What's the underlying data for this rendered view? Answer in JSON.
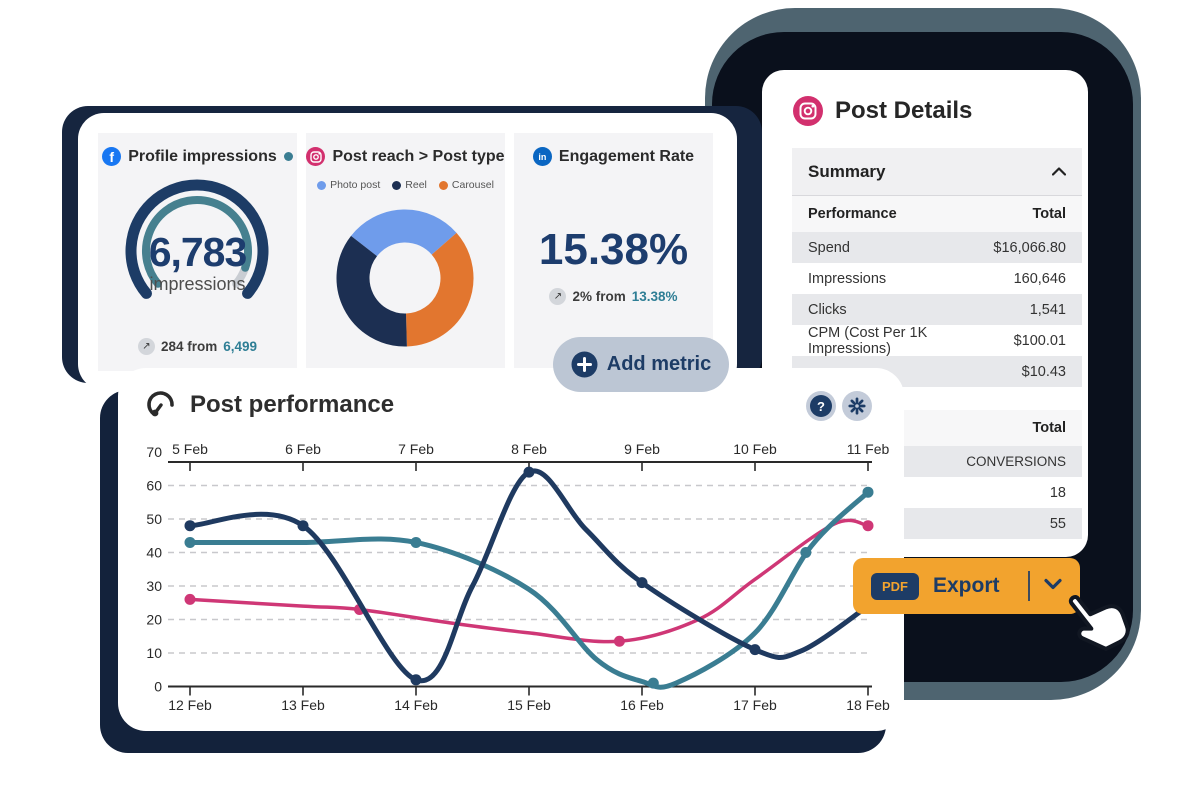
{
  "metrics_card": {
    "widgets": [
      {
        "platform": "facebook",
        "title": "Profile impressions",
        "value": "6,783",
        "unit": "impressions",
        "delta_icon": "↗",
        "delta_text": "284 from",
        "delta_value": "6,499"
      },
      {
        "platform": "instagram",
        "title": "Post reach > Post type",
        "legend": [
          {
            "label": "Photo post",
            "color": "#6f9ceb"
          },
          {
            "label": "Reel",
            "color": "#1c2f52"
          },
          {
            "label": "Carousel",
            "color": "#e2762f"
          }
        ]
      },
      {
        "platform": "linkedin",
        "title": "Engagement Rate",
        "value": "15.38%",
        "delta_icon": "↗",
        "delta_text": "2% from",
        "delta_value": "13.38%"
      }
    ],
    "add_metric_label": "Add metric",
    "facebook_glyph": "f",
    "linkedin_glyph": "in"
  },
  "post_details": {
    "title": "Post Details",
    "section_header": "Summary",
    "collapse_icon": "chevron-up",
    "table1": {
      "headers": [
        "Performance",
        "Total"
      ],
      "rows": [
        [
          "Spend",
          "$16,066.80"
        ],
        [
          "Impressions",
          "160,646"
        ],
        [
          "Clicks",
          "1,541"
        ],
        [
          "CPM (Cost Per 1K Impressions)",
          "$100.01"
        ],
        [
          "",
          "$10.43"
        ]
      ]
    },
    "table2": {
      "header": "Total",
      "rows": [
        "CONVERSIONS",
        "18",
        "55"
      ]
    }
  },
  "post_performance": {
    "title": "Post performance"
  },
  "export_button": {
    "badge": "PDF",
    "label": "Export",
    "caret": "v"
  },
  "colors": {
    "navy": "#1d3c66",
    "teal": "#3a7d92",
    "pink": "#cf3776",
    "orange": "#f2a32e",
    "gauge_rest": "#c9cdd3",
    "backdrop_black": "#0a101c",
    "backdrop_slate": "#4e6470",
    "card_shadow_navy": "#16253f"
  },
  "chart_data": [
    {
      "id": "profile-impressions-gauge",
      "type": "gauge",
      "value": 6783,
      "value_label": "6,783",
      "unit": "impressions",
      "previous": 6499,
      "delta": 284,
      "start_angle": -130,
      "end_angle": 130,
      "outer_fraction": 1.0,
      "inner_fraction": 0.92,
      "outer_color": "#1d3c66",
      "inner_color": "#46808f",
      "rest_color": "#c9cdd3"
    },
    {
      "id": "post-reach-donut",
      "type": "pie",
      "title": "Post reach > Post type",
      "start_angle": -52,
      "segments": [
        {
          "label": "Photo post",
          "value": 28,
          "color": "#6f9ceb"
        },
        {
          "label": "Carousel",
          "value": 36,
          "color": "#e2762f"
        },
        {
          "label": "Reel",
          "value": 36,
          "color": "#1c2f52"
        }
      ],
      "legend_order": [
        "Photo post",
        "Reel",
        "Carousel"
      ]
    },
    {
      "id": "post-performance-lines",
      "type": "line",
      "title": "Post performance",
      "ylim": [
        0,
        70
      ],
      "y_ticks": [
        0,
        10,
        20,
        30,
        40,
        50,
        60,
        70
      ],
      "grid_values": [
        10,
        20,
        30,
        40,
        50,
        60
      ],
      "top_axis_labels": [
        "5 Feb",
        "6 Feb",
        "7 Feb",
        "8 Feb",
        "9 Feb",
        "10 Feb",
        "11 Feb"
      ],
      "bottom_axis_labels": [
        "12 Feb",
        "13 Feb",
        "14 Feb",
        "15 Feb",
        "16 Feb",
        "17 Feb",
        "18 Feb"
      ],
      "series": [
        {
          "name": "pink-series",
          "color": "#cf3776",
          "width": 3.5,
          "points": [
            [
              0,
              26
            ],
            [
              1,
              24
            ],
            [
              1.5,
              23
            ],
            [
              2.3,
              19
            ],
            [
              3,
              16
            ],
            [
              3.8,
              13.5
            ],
            [
              4.5,
              20
            ],
            [
              5,
              32
            ],
            [
              5.7,
              48.5
            ],
            [
              6,
              48
            ]
          ],
          "markers": [
            [
              0,
              26
            ],
            [
              1.5,
              23
            ],
            [
              3.8,
              13.5
            ],
            [
              6,
              48
            ]
          ]
        },
        {
          "name": "teal-series",
          "color": "#3a7d92",
          "width": 5,
          "points": [
            [
              0,
              43
            ],
            [
              1,
              43
            ],
            [
              2,
              43
            ],
            [
              3,
              29
            ],
            [
              3.6,
              8
            ],
            [
              4,
              1.5
            ],
            [
              4.3,
              1
            ],
            [
              5,
              16
            ],
            [
              5.5,
              42
            ],
            [
              6,
              58
            ]
          ],
          "markers": [
            [
              0,
              43
            ],
            [
              2,
              43
            ],
            [
              4.1,
              1
            ],
            [
              5.45,
              40
            ],
            [
              6,
              58
            ]
          ]
        },
        {
          "name": "navy-series",
          "color": "#1f3a60",
          "width": 5,
          "points": [
            [
              0,
              48
            ],
            [
              1,
              48
            ],
            [
              2,
              2
            ],
            [
              2.5,
              30
            ],
            [
              3,
              64
            ],
            [
              3.5,
              47
            ],
            [
              4,
              31
            ],
            [
              5,
              11
            ],
            [
              5.4,
              10.5
            ],
            [
              6,
              24
            ]
          ],
          "markers": [
            [
              0,
              48
            ],
            [
              1,
              48
            ],
            [
              2,
              2
            ],
            [
              3,
              64
            ],
            [
              4,
              31
            ],
            [
              5,
              11
            ]
          ]
        }
      ]
    }
  ]
}
